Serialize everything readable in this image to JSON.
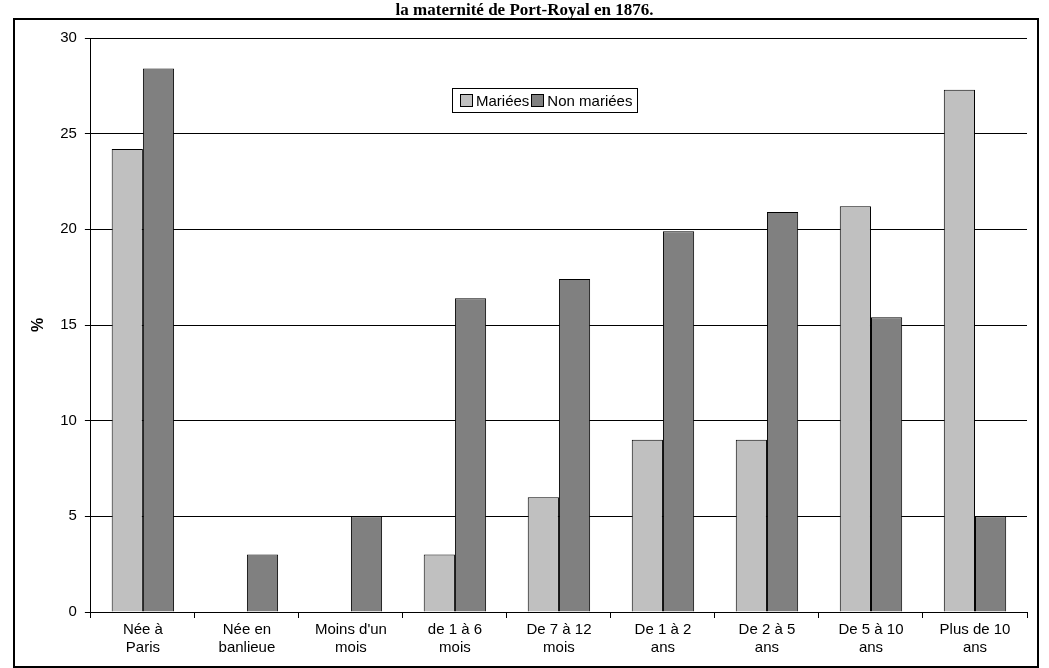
{
  "chart_data": {
    "type": "bar",
    "title": "la maternité de Port-Royal en 1876.",
    "ylabel": "%",
    "categories": [
      "Née à Paris",
      "Née en banlieue",
      "Moins d'un mois",
      "de 1 à 6 mois",
      "De 7 à 12 mois",
      "De 1 à 2 ans",
      "De 2 à 5 ans",
      "De 5 à 10 ans",
      "Plus de 10 ans"
    ],
    "series": [
      {
        "name": "Mariées",
        "color": "#c0c0c0",
        "values": [
          24.2,
          0,
          0,
          3.0,
          6.0,
          9.0,
          9.0,
          21.2,
          27.3
        ]
      },
      {
        "name": "Non mariées",
        "color": "#808080",
        "values": [
          28.4,
          3.0,
          5.0,
          16.4,
          17.4,
          19.9,
          20.9,
          15.4,
          5.0
        ]
      }
    ],
    "ylim": [
      0,
      30
    ],
    "yticks": [
      0,
      5,
      10,
      15,
      20,
      25,
      30
    ],
    "grid": "y",
    "legend": "top"
  }
}
